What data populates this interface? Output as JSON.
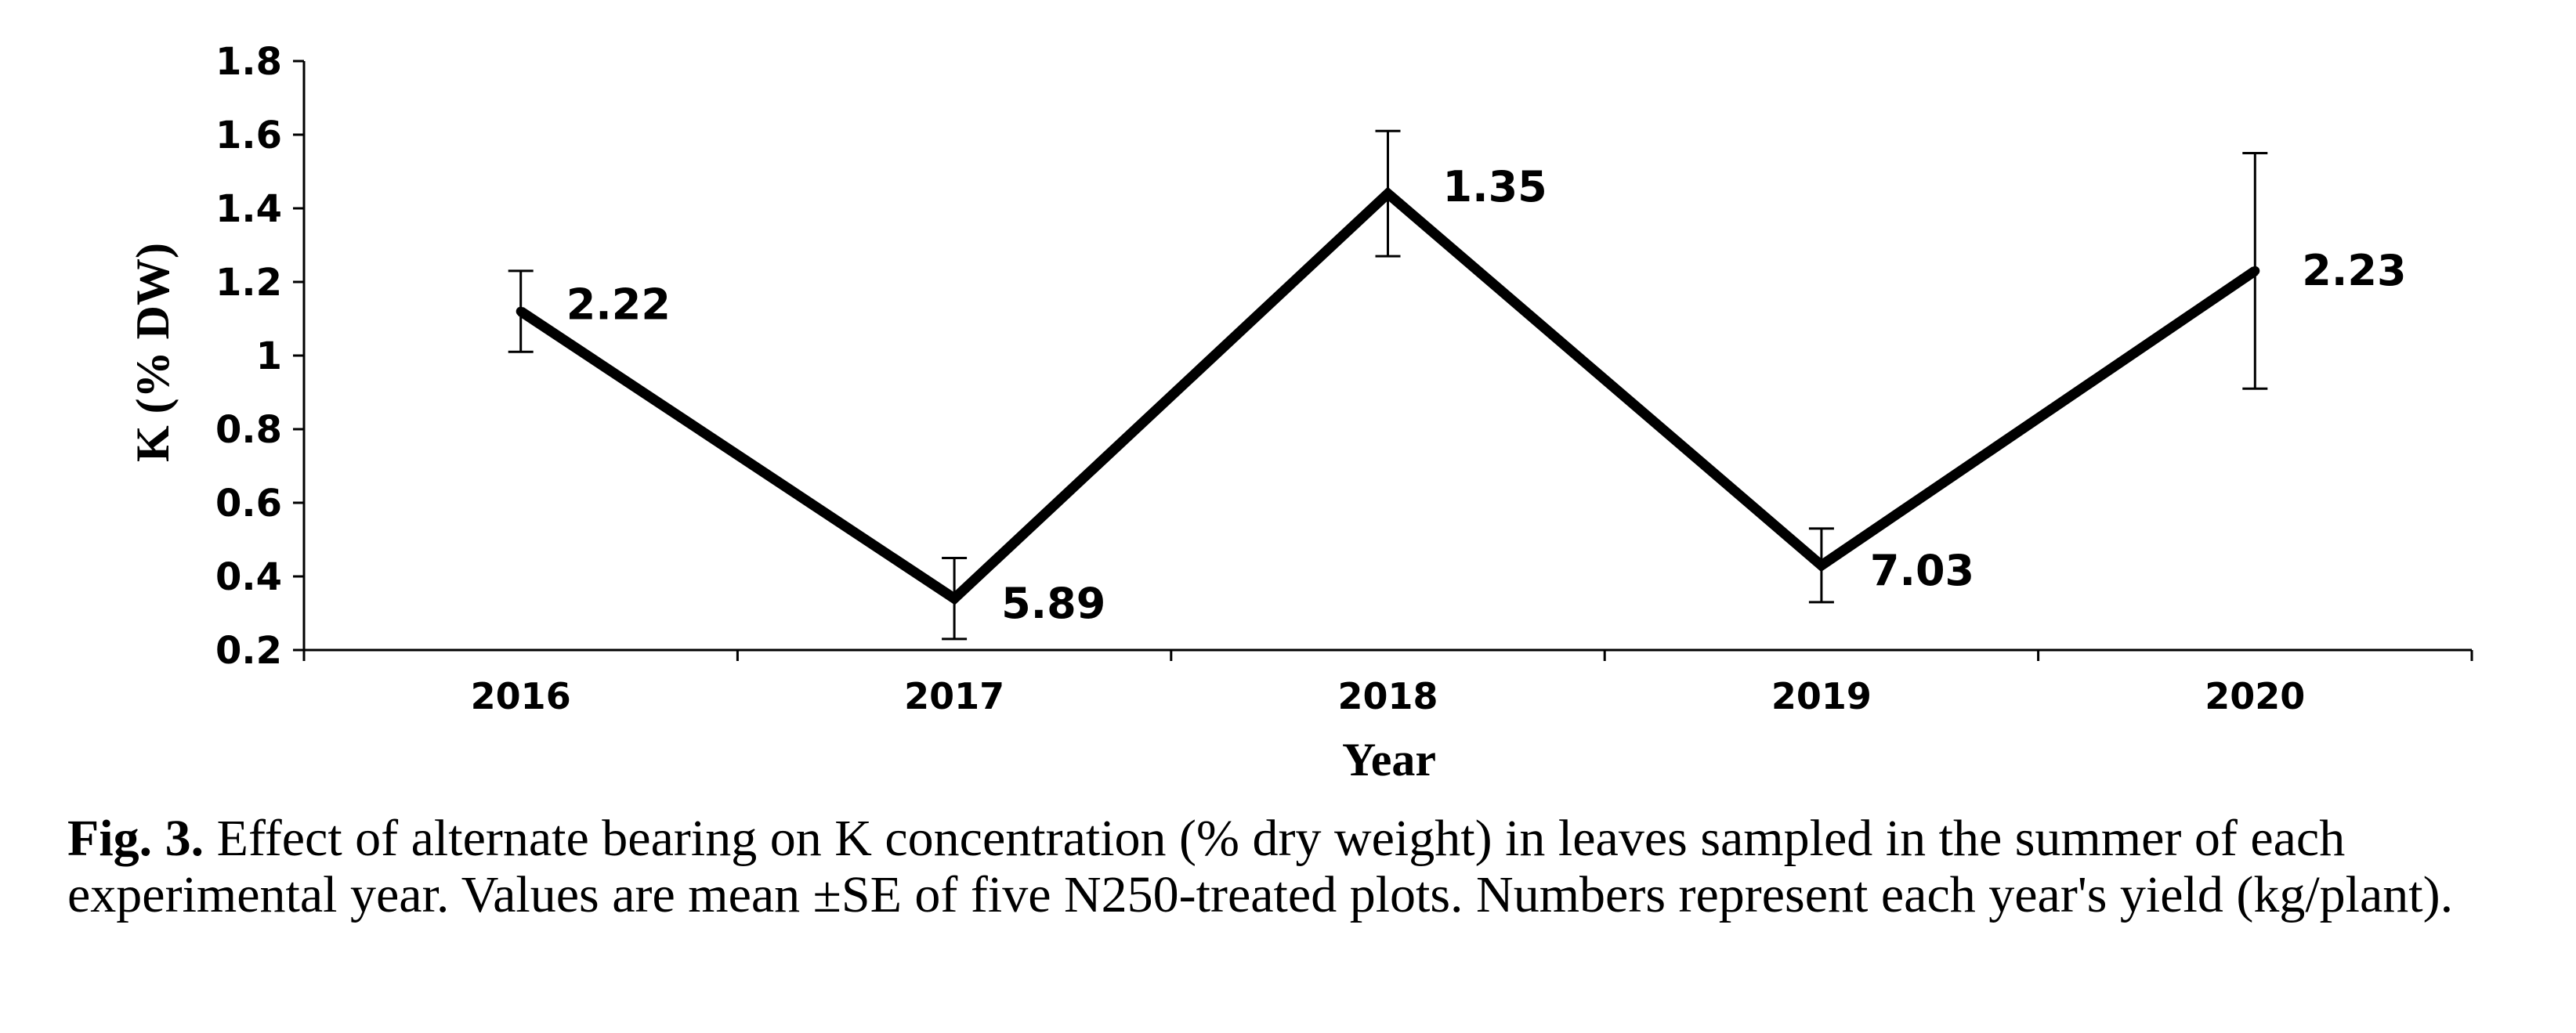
{
  "chart_data": {
    "type": "line",
    "categories": [
      "2016",
      "2017",
      "2018",
      "2019",
      "2020"
    ],
    "series": [
      {
        "name": "K (% DW)",
        "values": [
          1.12,
          0.34,
          1.44,
          0.43,
          1.23
        ],
        "error": [
          0.11,
          0.11,
          0.17,
          0.1,
          0.32
        ],
        "data_labels": [
          "2.22",
          "5.89",
          "1.35",
          "7.03",
          "2.23"
        ]
      }
    ],
    "yticks": [
      "0.2",
      "0.4",
      "0.6",
      "0.8",
      "1",
      "1.2",
      "1.4",
      "1.6",
      "1.8"
    ],
    "ylim": [
      0.2,
      1.8
    ],
    "xlabel": "Year",
    "ylabel": "K (% DW)",
    "line_color": "#000000"
  },
  "caption": {
    "label": "Fig. 3.",
    "text": "Effect of alternate bearing on K concentration (% dry weight) in leaves sampled in the summer of each experimental year. Values are mean ±SE of five N250-treated plots. Numbers represent each year's yield (kg/plant)."
  }
}
